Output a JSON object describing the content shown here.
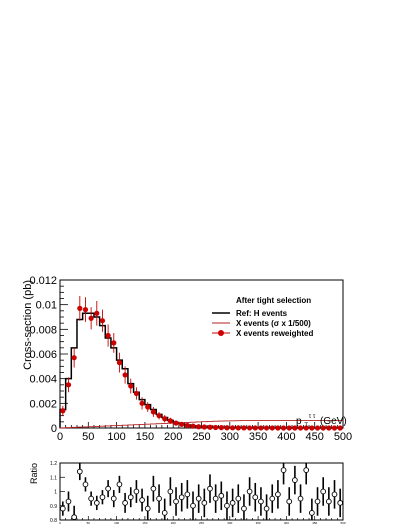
{
  "chart_data": [
    {
      "type": "line",
      "legend_title": "After tight selection",
      "legend_position": "top-right",
      "ylabel": "Cross-section (pb)",
      "xlabel_main": "p",
      "xlabel_sub": "T",
      "xlabel_sup": "τ τ",
      "xlabel_unit": "(GeV)",
      "xlim": [
        0,
        500
      ],
      "ylim": [
        0,
        0.012
      ],
      "xticks": [
        0,
        50,
        100,
        150,
        200,
        250,
        300,
        350,
        400,
        450,
        500
      ],
      "yticks": [
        0,
        0.002,
        0.004,
        0.006,
        0.008,
        0.01,
        0.012
      ],
      "ytick_labels": [
        "0",
        "0.002",
        "0.004",
        "0.006",
        "0.008",
        "0.01",
        "0.012"
      ],
      "bin_width": 10,
      "series": [
        {
          "name": "Ref: H events",
          "style": "step",
          "color": "#000000",
          "values": [
            0.0015,
            0.004,
            0.0065,
            0.0088,
            0.0093,
            0.0093,
            0.009,
            0.0083,
            0.0073,
            0.0065,
            0.0055,
            0.0048,
            0.0036,
            0.0029,
            0.0023,
            0.0019,
            0.0015,
            0.0011,
            0.00085,
            0.00062,
            0.00045,
            0.00033,
            0.00024,
            0.00017,
            0.00012,
            8e-05,
            6e-05,
            4e-05,
            3e-05,
            2e-05,
            1.5e-05,
            1e-05,
            8e-06,
            6e-06,
            5e-06,
            4e-06,
            3e-06,
            3e-06,
            2e-06,
            2e-06,
            1e-06,
            1e-06,
            1e-06,
            1e-06,
            1e-06,
            1e-06,
            1e-06,
            1e-06,
            1e-06,
            1e-06
          ]
        },
        {
          "name": "X events (σ x 1/500)",
          "style": "step",
          "color": "#b22222",
          "values": [
            1e-05,
            3e-05,
            5e-05,
            7e-05,
            9e-05,
            0.00011,
            0.00013,
            0.00015,
            0.00017,
            0.00019,
            0.00021,
            0.00023,
            0.00025,
            0.00027,
            0.00029,
            0.00031,
            0.00033,
            0.00035,
            0.00037,
            0.00039,
            0.00041,
            0.00043,
            0.00045,
            0.00047,
            0.00049,
            0.00051,
            0.00053,
            0.00055,
            0.00056,
            0.00057,
            0.00058,
            0.00059,
            0.0006,
            0.0006,
            0.0006,
            0.0006,
            0.0006,
            0.0006,
            0.0006,
            0.0006,
            0.0006,
            0.0006,
            0.0006,
            0.0006,
            0.0006,
            0.0006,
            0.0006,
            0.0006,
            0.0006,
            0.0006
          ]
        },
        {
          "name": "X events reweighted",
          "style": "markers",
          "color": "#cc0000",
          "values": [
            0.0014,
            0.0035,
            0.0057,
            0.0097,
            0.0096,
            0.0089,
            0.0093,
            0.0087,
            0.0075,
            0.0069,
            0.0053,
            0.0043,
            0.0034,
            0.0028,
            0.002,
            0.0017,
            0.0013,
            0.001,
            0.00075,
            0.00058,
            0.0004,
            0.0003,
            0.0002,
            0.00015,
            0.0001,
            8e-05,
            6e-05,
            4e-05,
            3e-05,
            2e-05,
            1.5e-05,
            1e-05,
            8e-06,
            6e-06,
            5e-06,
            4e-06,
            3e-06,
            3e-06,
            2e-06,
            2e-06,
            1e-06,
            1e-06,
            1e-06,
            1e-06,
            1e-06,
            1e-06,
            1e-06,
            1e-06,
            1e-06,
            1e-06
          ],
          "errors": [
            0.0004,
            0.0006,
            0.0008,
            0.001,
            0.001,
            0.0009,
            0.001,
            0.0009,
            0.0009,
            0.0008,
            0.0008,
            0.0007,
            0.0006,
            0.0005,
            0.0005,
            0.0004,
            0.0004,
            0.0003,
            0.0003,
            0.00025,
            0.0002,
            0.00015,
            0.00012,
            0.0001,
            8e-05,
            6e-05,
            5e-05,
            4e-05,
            3e-05,
            3e-05,
            2e-05,
            2e-05,
            2e-05,
            1e-05,
            1e-05,
            1e-05,
            1e-05,
            1e-05,
            1e-05,
            1e-05,
            1e-05,
            1e-05,
            1e-05,
            1e-05,
            1e-05,
            1e-05,
            1e-05,
            1e-05,
            1e-05,
            1e-05
          ]
        }
      ]
    },
    {
      "type": "scatter",
      "ylabel": "Ratio",
      "xlim": [
        0,
        500
      ],
      "ylim": [
        0.8,
        1.2
      ],
      "yticks": [
        0.8,
        0.9,
        1,
        1.1,
        1.2
      ],
      "ytick_labels": [
        "0.8",
        "0.9",
        "1",
        "1.1",
        "1.2"
      ],
      "xticks": [
        0,
        50,
        100,
        150,
        200,
        250,
        300,
        350,
        400,
        450,
        500
      ],
      "marker": "open-circle",
      "x": [
        5,
        15,
        25,
        35,
        45,
        55,
        65,
        75,
        85,
        95,
        105,
        115,
        125,
        135,
        145,
        155,
        165,
        175,
        185,
        195,
        205,
        215,
        225,
        235,
        245,
        255,
        265,
        275,
        285,
        295,
        305,
        315,
        325,
        335,
        345,
        355,
        365,
        375,
        385,
        395,
        405,
        415,
        425,
        435,
        445,
        455,
        465,
        475,
        485,
        495
      ],
      "values": [
        0.88,
        0.93,
        0.82,
        1.14,
        1.05,
        0.95,
        0.92,
        0.96,
        1.02,
        0.95,
        1.05,
        0.92,
        0.96,
        1.0,
        0.94,
        0.88,
        1.02,
        0.95,
        0.85,
        1.0,
        0.93,
        0.96,
        0.98,
        0.9,
        0.95,
        0.92,
        1.02,
        0.95,
        0.97,
        0.9,
        0.92,
        0.95,
        0.88,
        1.0,
        0.96,
        0.93,
        0.88,
        0.95,
        0.98,
        1.15,
        0.93,
        1.08,
        0.95,
        1.15,
        0.85,
        0.93,
        1.0,
        0.93,
        0.98,
        0.92
      ],
      "errors": [
        0.05,
        0.07,
        0.08,
        0.06,
        0.05,
        0.05,
        0.05,
        0.05,
        0.06,
        0.06,
        0.06,
        0.07,
        0.07,
        0.08,
        0.08,
        0.09,
        0.09,
        0.1,
        0.1,
        0.1,
        0.1,
        0.1,
        0.1,
        0.1,
        0.1,
        0.1,
        0.1,
        0.1,
        0.1,
        0.1,
        0.1,
        0.1,
        0.1,
        0.1,
        0.1,
        0.1,
        0.1,
        0.1,
        0.1,
        0.1,
        0.1,
        0.1,
        0.1,
        0.1,
        0.1,
        0.1,
        0.1,
        0.1,
        0.1,
        0.1
      ]
    }
  ]
}
